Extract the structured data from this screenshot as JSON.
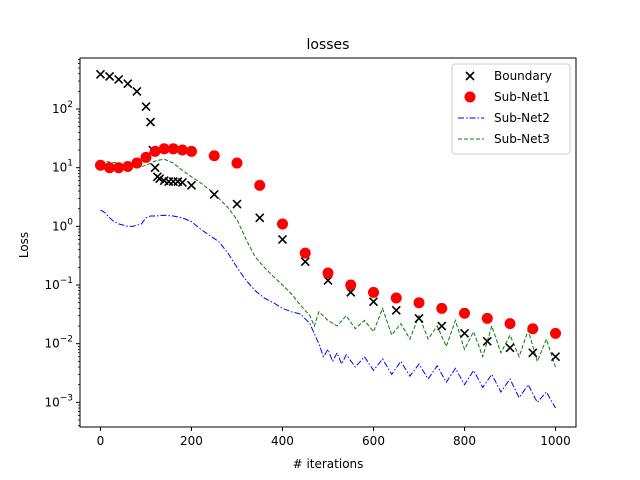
{
  "chart_data": {
    "type": "line",
    "title": "losses",
    "xlabel": "# iterations",
    "ylabel": "Loss",
    "xlim": [
      -45,
      1045
    ],
    "ylim_log10": [
      -3.42,
      2.87
    ],
    "yscale": "log",
    "x_ticks": [
      0,
      200,
      400,
      600,
      800,
      1000
    ],
    "y_ticks": [
      {
        "exp": -3,
        "label": "10",
        "sup": "−3"
      },
      {
        "exp": -2,
        "label": "10",
        "sup": "−2"
      },
      {
        "exp": -1,
        "label": "10",
        "sup": "−1"
      },
      {
        "exp": 0,
        "label": "10",
        "sup": "0"
      },
      {
        "exp": 1,
        "label": "10",
        "sup": "1"
      },
      {
        "exp": 2,
        "label": "10",
        "sup": "2"
      }
    ],
    "legend_position": "top-right",
    "grid": false,
    "series": [
      {
        "name": "Boundary",
        "style": "x-markers",
        "color": "#000000",
        "x": [
          0,
          20,
          40,
          60,
          80,
          100,
          110,
          115,
          120,
          125,
          130,
          140,
          150,
          160,
          170,
          180,
          200,
          250,
          300,
          350,
          400,
          450,
          500,
          550,
          600,
          650,
          700,
          750,
          800,
          850,
          900,
          950,
          1000
        ],
        "y": [
          390,
          360,
          320,
          270,
          200,
          110,
          60,
          20,
          10,
          7,
          6.5,
          6,
          5.8,
          5.8,
          5.8,
          5.6,
          5.0,
          3.5,
          2.4,
          1.4,
          0.6,
          0.25,
          0.12,
          0.075,
          0.052,
          0.037,
          0.027,
          0.02,
          0.015,
          0.011,
          0.0085,
          0.007,
          0.006
        ]
      },
      {
        "name": "Sub-Net1",
        "style": "dot-markers",
        "color": "#ff0000",
        "x": [
          0,
          20,
          40,
          60,
          80,
          100,
          120,
          140,
          160,
          180,
          200,
          250,
          300,
          350,
          400,
          450,
          500,
          550,
          600,
          650,
          700,
          750,
          800,
          850,
          900,
          950,
          1000
        ],
        "y": [
          11,
          10,
          10,
          10.5,
          12,
          15,
          19,
          21,
          21,
          20,
          19,
          16,
          12,
          5,
          1.1,
          0.35,
          0.16,
          0.1,
          0.075,
          0.06,
          0.05,
          0.04,
          0.033,
          0.027,
          0.022,
          0.018,
          0.015
        ]
      },
      {
        "name": "Sub-Net2",
        "style": "dash-dot",
        "color": "#0000ff",
        "x": [
          0,
          10,
          20,
          30,
          40,
          50,
          60,
          70,
          80,
          90,
          100,
          110,
          120,
          140,
          160,
          180,
          200,
          220,
          240,
          260,
          280,
          300,
          320,
          340,
          360,
          380,
          400,
          420,
          440,
          460,
          480,
          490,
          500,
          510,
          520,
          530,
          540,
          560,
          580,
          600,
          620,
          640,
          660,
          680,
          700,
          720,
          740,
          760,
          780,
          800,
          820,
          840,
          860,
          880,
          900,
          920,
          940,
          960,
          980,
          1000
        ],
        "y": [
          1.9,
          1.7,
          1.4,
          1.2,
          1.1,
          1.05,
          1.0,
          1.0,
          1.05,
          1.1,
          1.4,
          1.5,
          1.5,
          1.55,
          1.5,
          1.4,
          1.2,
          0.9,
          0.7,
          0.55,
          0.35,
          0.2,
          0.12,
          0.08,
          0.06,
          0.05,
          0.04,
          0.035,
          0.032,
          0.022,
          0.01,
          0.006,
          0.008,
          0.005,
          0.007,
          0.0045,
          0.0065,
          0.004,
          0.006,
          0.0035,
          0.0055,
          0.003,
          0.005,
          0.0028,
          0.0045,
          0.0025,
          0.0042,
          0.0022,
          0.0038,
          0.002,
          0.0035,
          0.0018,
          0.003,
          0.0015,
          0.0025,
          0.0012,
          0.002,
          0.001,
          0.0015,
          0.0008
        ]
      },
      {
        "name": "Sub-Net3",
        "style": "dashed",
        "color": "#008000",
        "x": [
          0,
          20,
          40,
          60,
          80,
          100,
          120,
          140,
          160,
          180,
          200,
          220,
          240,
          260,
          280,
          300,
          320,
          340,
          360,
          380,
          400,
          420,
          440,
          460,
          470,
          480,
          500,
          520,
          540,
          560,
          580,
          600,
          620,
          640,
          660,
          680,
          700,
          720,
          740,
          760,
          780,
          800,
          820,
          840,
          860,
          880,
          900,
          920,
          940,
          960,
          980,
          1000
        ],
        "y": [
          13,
          12.5,
          12,
          11,
          10,
          11,
          13,
          14,
          12,
          9,
          7,
          5.5,
          4.2,
          3,
          2.1,
          1.3,
          0.6,
          0.3,
          0.2,
          0.14,
          0.1,
          0.07,
          0.045,
          0.03,
          0.02,
          0.035,
          0.025,
          0.02,
          0.03,
          0.018,
          0.025,
          0.016,
          0.04,
          0.014,
          0.022,
          0.012,
          0.03,
          0.012,
          0.02,
          0.009,
          0.025,
          0.008,
          0.016,
          0.006,
          0.02,
          0.007,
          0.014,
          0.006,
          0.017,
          0.005,
          0.012,
          0.004
        ]
      }
    ]
  }
}
